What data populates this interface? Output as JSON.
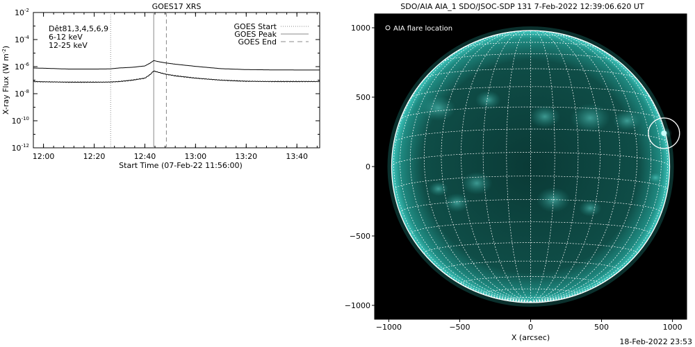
{
  "chart_data": [
    {
      "type": "line",
      "title": "GOES17 XRS",
      "xlabel": "Start Time (07-Feb-22 11:56:00)",
      "ylabel": "X-ray Flux (W m",
      "ylabel_sup": "-2",
      "ylabel_close": ")",
      "log_y": true,
      "ylim_exp": [
        -12,
        -2
      ],
      "xlim_min": [
        -4,
        109
      ],
      "x_tick_min": [
        0,
        20,
        40,
        60,
        80,
        100
      ],
      "x_tick_labels": [
        "12:00",
        "12:20",
        "12:40",
        "13:00",
        "13:20",
        "13:40"
      ],
      "y_tick_exp": [
        -12,
        -10,
        -8,
        -6,
        -4,
        -2
      ],
      "y_tick_base": "10",
      "y_tick_sup": [
        "-12",
        "-10",
        "-8",
        "-6",
        "-4",
        "-2"
      ],
      "legend_left": [
        {
          "text": "Dêt81,3,4,5,6,9",
          "color": "#000000"
        },
        {
          "text": "6-12 keV",
          "color": "#d000d0"
        },
        {
          "text": "12-25 keV",
          "color": "#00c000"
        }
      ],
      "legend_right": [
        {
          "text": "GOES Start",
          "style": "dotted"
        },
        {
          "text": "GOES Peak",
          "style": "solid"
        },
        {
          "text": "GOES End",
          "style": "dashed"
        }
      ],
      "markers_min": {
        "start": 26.5,
        "peak": 43.5,
        "end": 48.5
      },
      "series": [
        {
          "values_x": [
            -4,
            0,
            10,
            20,
            26,
            30,
            35,
            40,
            42,
            43.5,
            45,
            48,
            52,
            60,
            70,
            80,
            90,
            100,
            109
          ],
          "values_logy": [
            -6.1,
            -6.12,
            -6.18,
            -6.18,
            -6.17,
            -6.1,
            -6.05,
            -5.95,
            -5.75,
            -5.55,
            -5.62,
            -5.72,
            -5.82,
            -5.98,
            -6.15,
            -6.22,
            -6.24,
            -6.25,
            -6.25
          ]
        },
        {
          "values_x": [
            -4,
            0,
            10,
            20,
            26,
            30,
            35,
            40,
            42,
            43.5,
            45,
            48,
            52,
            60,
            70,
            80,
            90,
            100,
            109
          ],
          "values_logy": [
            -7.1,
            -7.12,
            -7.15,
            -7.15,
            -7.14,
            -7.1,
            -7.0,
            -6.85,
            -6.6,
            -6.32,
            -6.4,
            -6.55,
            -6.68,
            -6.85,
            -7.0,
            -7.08,
            -7.1,
            -7.1,
            -7.1
          ]
        }
      ]
    },
    {
      "type": "image",
      "title": "SDO/AIA AIA_1 SDO/JSOC-SDP 131  7-Feb-2022 12:39:06.620 UT",
      "xlabel": "X (arcsec)",
      "xlim": [
        -1100,
        1100
      ],
      "ylim": [
        -1100,
        1100
      ],
      "x_ticks": [
        -1000,
        -500,
        0,
        500,
        1000
      ],
      "y_ticks": [
        -1000,
        -500,
        0,
        500,
        1000
      ],
      "x_tick_labels": [
        "−1000",
        "−500",
        "0",
        "500",
        "1000"
      ],
      "y_tick_labels": [
        "−1000",
        "−500",
        "0",
        "500",
        "1000"
      ],
      "solar_radius_arcsec": 980,
      "flare_location_arcsec": [
        940,
        240
      ],
      "flare_circle_radius_arcsec": 110,
      "legend": "AIA flare location",
      "footer_timestamp": "18-Feb-2022 23:53",
      "colors": {
        "disk": "#0d4a44",
        "bright": "#4fd7cf",
        "background": "#000000",
        "grid": "#ffffff"
      }
    }
  ]
}
